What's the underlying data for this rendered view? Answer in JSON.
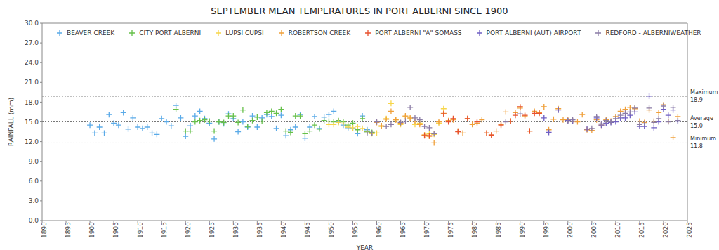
{
  "chart_data": {
    "type": "scatter",
    "title": "SEPTEMBER MEAN TEMPERATURES IN PORT ALBERNI SINCE 1900",
    "x_label": "YEAR",
    "y_label": "RAINFALL (mm)",
    "marker": "plus",
    "grid": false,
    "legend": "top",
    "xlim": [
      1890,
      2025
    ],
    "xticks": [
      1890,
      1895,
      1900,
      1905,
      1910,
      1915,
      1920,
      1925,
      1930,
      1935,
      1940,
      1945,
      1950,
      1955,
      1960,
      1965,
      1970,
      1975,
      1980,
      1985,
      1990,
      1995,
      2000,
      2005,
      2010,
      2015,
      2020,
      2025
    ],
    "ylim": [
      0,
      30
    ],
    "yticks": [
      {
        "value": 0,
        "label": "0.0"
      },
      {
        "value": 3,
        "label": "3.0"
      },
      {
        "value": 6,
        "label": "6.0"
      },
      {
        "value": 9,
        "label": "9.0"
      },
      {
        "value": 12,
        "label": "12.0"
      },
      {
        "value": 15,
        "label": "15.0"
      },
      {
        "value": 18,
        "label": "18.0"
      },
      {
        "value": 21,
        "label": "21.0"
      },
      {
        "value": 24,
        "label": "24.0"
      },
      {
        "value": 27,
        "label": "27.0"
      },
      {
        "value": 30,
        "label": "30.0"
      }
    ],
    "reference_lines": [
      {
        "label": "Maximum",
        "value": 18.9,
        "value_label": "18.9"
      },
      {
        "label": "Average",
        "value": 15,
        "value_label": "15.0"
      },
      {
        "label": "Minimum",
        "value": 11.8,
        "value_label": "11.8"
      }
    ],
    "series": [
      {
        "name": "BEAVER CREEK",
        "color": "#5aaae8",
        "x": [
          1900,
          1901,
          1902,
          1903,
          1904,
          1905,
          1906,
          1907,
          1908,
          1909,
          1910,
          1911,
          1912,
          1913,
          1914,
          1915,
          1916,
          1917,
          1918,
          1919,
          1920,
          1921,
          1922,
          1923,
          1924,
          1925,
          1926,
          1927,
          1928,
          1929,
          1930,
          1931,
          1932,
          1933,
          1934,
          1935,
          1936,
          1937,
          1938,
          1939,
          1940,
          1941,
          1942,
          1943,
          1944,
          1945,
          1946,
          1947,
          1948,
          1949,
          1950,
          1951,
          1952,
          1953,
          1954,
          1955,
          1956,
          1957,
          1958,
          1959
        ],
        "values": [
          14.5,
          13.3,
          14.2,
          13.3,
          16.1,
          14.8,
          14.5,
          16.4,
          13.9,
          15.6,
          14.2,
          14.0,
          14.2,
          13.3,
          13.1,
          15.5,
          15.0,
          14.4,
          17.5,
          15.6,
          12.8,
          14.4,
          15.9,
          16.6,
          15.5,
          14.8,
          12.4,
          15.0,
          14.7,
          16.2,
          15.5,
          13.5,
          15.0,
          14.2,
          15.9,
          14.2,
          15.6,
          16.1,
          15.8,
          14.0,
          16.0,
          12.9,
          13.8,
          14.2,
          16.1,
          12.5,
          14.2,
          15.8,
          14.0,
          15.7,
          16.1,
          16.6,
          15.0,
          14.5,
          14.1,
          14.0,
          13.2,
          15.9,
          13.8,
          13.3
        ]
      },
      {
        "name": "CITY PORT ALBERNI",
        "color": "#66c04a",
        "x": [
          1918,
          1920,
          1921,
          1922,
          1923,
          1924,
          1925,
          1926,
          1927,
          1928,
          1929,
          1930,
          1931,
          1932,
          1933,
          1934,
          1935,
          1936,
          1937,
          1938,
          1939,
          1940,
          1941,
          1942,
          1943,
          1944,
          1945,
          1946,
          1947,
          1948,
          1949,
          1950,
          1951,
          1952,
          1953,
          1954,
          1955,
          1956,
          1957,
          1958,
          1959
        ],
        "values": [
          16.9,
          13.6,
          13.6,
          15.0,
          15.2,
          15.3,
          15.1,
          13.6,
          15.0,
          14.9,
          15.9,
          15.9,
          14.9,
          16.8,
          14.3,
          15.2,
          15.7,
          15.1,
          16.4,
          16.6,
          16.3,
          16.9,
          13.6,
          13.4,
          15.9,
          15.9,
          13.2,
          13.6,
          14.5,
          13.9,
          15.2,
          15.1,
          15.0,
          15.2,
          15.0,
          14.5,
          14.8,
          13.8,
          15.5,
          13.5,
          13.4
        ]
      },
      {
        "name": "LUPSI CUPSI",
        "color": "#f7d64a",
        "x": [
          1950,
          1951,
          1952,
          1953,
          1954,
          1955,
          1956,
          1957,
          1958,
          1959,
          1960,
          1961,
          1962,
          1963,
          1964,
          1965,
          1966,
          1967,
          1968,
          1969,
          1970,
          1971,
          1972,
          1973,
          1974
        ],
        "values": [
          14.6,
          14.6,
          14.9,
          14.7,
          14.2,
          14.1,
          14.3,
          14.0,
          13.6,
          13.2,
          13.3,
          14.3,
          15.5,
          17.8,
          15.3,
          14.6,
          15.8,
          15.5,
          14.6,
          14.8,
          13.0,
          13.2,
          13.1,
          14.8,
          17.0
        ]
      },
      {
        "name": "ROBERTSON CREEK",
        "color": "#f0a03a",
        "x": [
          1960,
          1961,
          1962,
          1963,
          1964,
          1965,
          1966,
          1967,
          1968,
          1969,
          1970,
          1971,
          1972,
          1973,
          1974,
          1975,
          1976,
          1977,
          1978,
          1979,
          1980,
          1981,
          1982,
          1983,
          1984,
          1985,
          1986,
          1987,
          1988,
          1989,
          1990,
          1991,
          1992,
          1993,
          1994,
          1995,
          1996,
          1997,
          1998,
          1999,
          2000,
          2001,
          2002,
          2003,
          2004,
          2005,
          2006,
          2007,
          2008,
          2009,
          2010,
          2011,
          2012,
          2013,
          2014,
          2015,
          2016,
          2017,
          2018,
          2019,
          2020,
          2021,
          2022,
          2023
        ],
        "values": [
          14.9,
          14.4,
          15.4,
          16.6,
          15.3,
          14.8,
          15.9,
          15.6,
          15.1,
          14.6,
          13.0,
          12.8,
          11.8,
          15.0,
          16.3,
          15.2,
          15.3,
          13.6,
          13.3,
          15.5,
          14.6,
          14.8,
          15.3,
          13.3,
          13.0,
          13.6,
          14.6,
          16.5,
          15.1,
          16.4,
          17.1,
          15.9,
          13.6,
          16.6,
          16.4,
          17.3,
          13.8,
          15.4,
          17.0,
          15.3,
          15.3,
          15.1,
          15.0,
          16.1,
          13.8,
          13.7,
          15.3,
          14.5,
          15.3,
          15.1,
          15.8,
          16.6,
          16.9,
          17.2,
          17.0,
          15.1,
          14.9,
          16.8,
          15.1,
          16.4,
          17.6,
          15.1,
          12.6,
          15.8
        ]
      },
      {
        "name": "PORT ALBERNI \"A\" SOMASS",
        "color": "#e8512e",
        "x": [
          1970,
          1971,
          1974,
          1975,
          1976,
          1977,
          1979,
          1981,
          1983,
          1984,
          1986,
          1988,
          1989,
          1990,
          1991,
          1992,
          1993,
          1994
        ],
        "values": [
          12.9,
          12.9,
          16.2,
          15.0,
          15.5,
          13.5,
          15.5,
          15.0,
          13.3,
          13.0,
          14.5,
          15.1,
          16.0,
          17.3,
          16.0,
          13.6,
          16.3,
          16.3
        ]
      },
      {
        "name": "PORT ALBERNI (AUT) AIRPORT",
        "color": "#6f5fc4",
        "x": [
          1995,
          1996,
          1998,
          2000,
          2001,
          2004,
          2006,
          2007,
          2008,
          2009,
          2010,
          2011,
          2012,
          2013,
          2014,
          2015,
          2016,
          2017,
          2018,
          2019,
          2020,
          2021,
          2022,
          2023
        ],
        "values": [
          15.6,
          13.4,
          16.8,
          15.2,
          15.1,
          13.9,
          15.6,
          14.5,
          14.8,
          14.9,
          15.0,
          15.6,
          15.6,
          16.0,
          16.5,
          14.3,
          14.3,
          18.9,
          14.1,
          15.0,
          16.9,
          16.0,
          16.8,
          15.1
        ]
      },
      {
        "name": "REDFORD - ALBERNIWEATHER",
        "color": "#8b7ca6",
        "x": [
          1958,
          1959,
          1960,
          1962,
          1963,
          1965,
          1966,
          1967,
          1968,
          1969,
          1970,
          1971,
          1972,
          1987,
          1990,
          2000,
          2001,
          2005,
          2006,
          2007,
          2008,
          2009,
          2010,
          2011,
          2012,
          2013,
          2014,
          2015,
          2016,
          2017,
          2018,
          2019,
          2020,
          2021,
          2022,
          2023
        ],
        "values": [
          13.3,
          13.3,
          15.0,
          14.3,
          14.6,
          14.9,
          15.1,
          17.2,
          15.6,
          15.3,
          14.3,
          14.1,
          13.2,
          15.0,
          16.2,
          15.1,
          15.3,
          14.0,
          15.8,
          14.7,
          15.2,
          15.0,
          15.5,
          16.0,
          16.3,
          16.5,
          17.1,
          14.6,
          14.7,
          17.1,
          14.9,
          15.5,
          17.4,
          15.0,
          17.2,
          15.2
        ]
      }
    ]
  }
}
